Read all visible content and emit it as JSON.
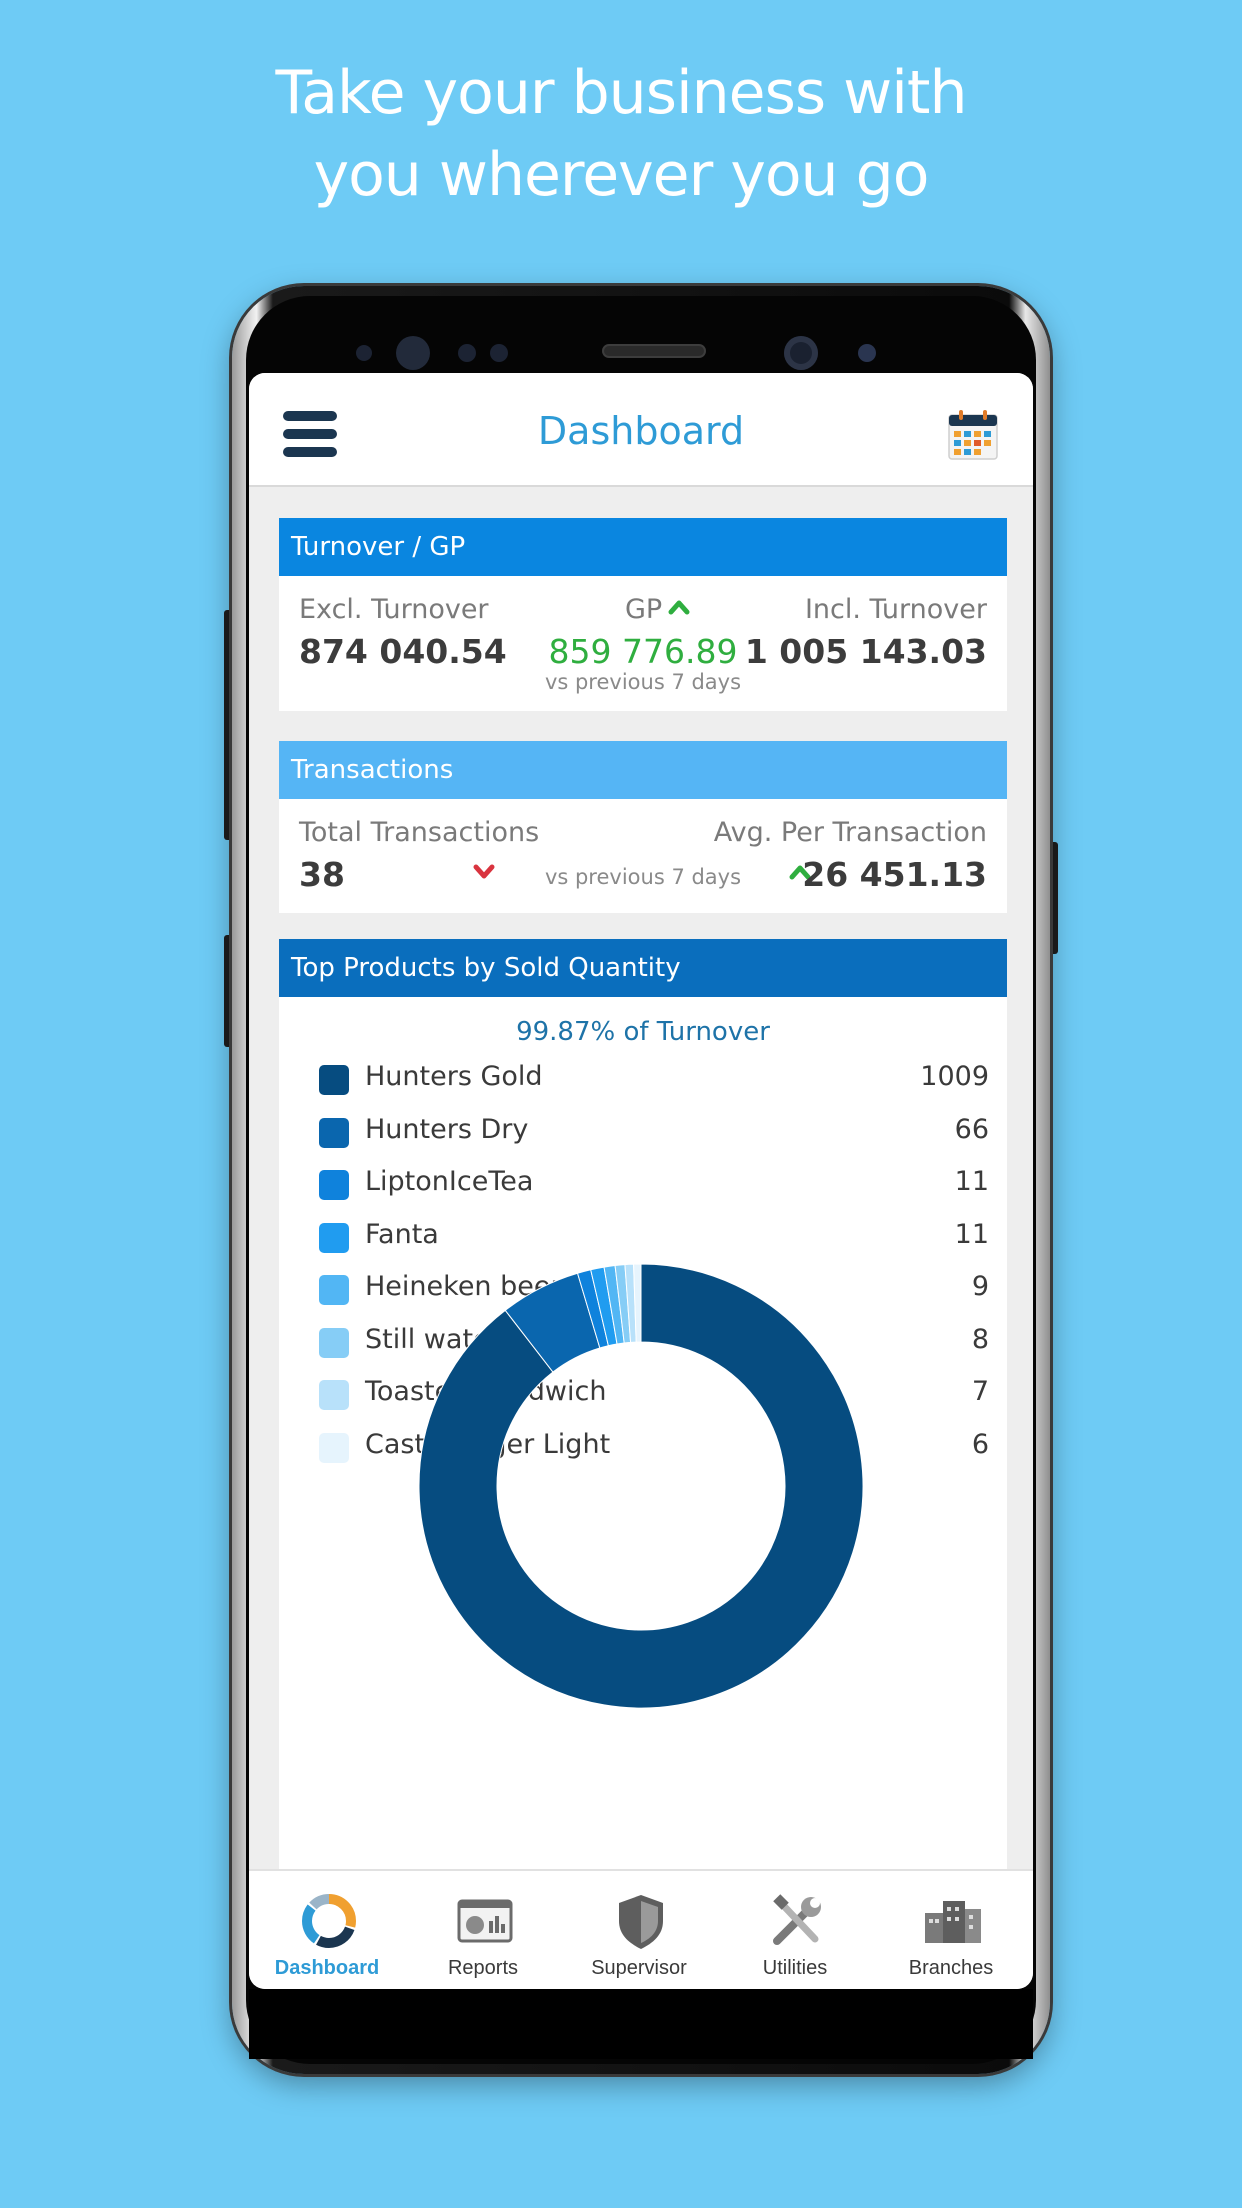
{
  "promo": {
    "line1": "Take your business with",
    "line2": "you wherever you go"
  },
  "appbar": {
    "title": "Dashboard",
    "menu_icon": "hamburger-menu-icon",
    "calendar_icon": "calendar-icon"
  },
  "turnover_card": {
    "header": "Turnover / GP",
    "header_color": "#0a86e0",
    "excl_label": "Excl. Turnover",
    "excl_value": "874 040.54",
    "gp_label": "GP",
    "gp_value": "859 776.89",
    "gp_compare": "vs previous 7 days",
    "gp_trend": "up",
    "incl_label": "Incl. Turnover",
    "incl_value": "1 005 143.03"
  },
  "transactions_card": {
    "header": "Transactions",
    "header_color": "#55b5f5",
    "total_label": "Total Transactions",
    "total_value": "38",
    "total_trend": "down",
    "compare": "vs previous 7 days",
    "avg_label": "Avg. Per Transaction",
    "avg_trend": "up",
    "avg_value": "26 451.13"
  },
  "top_products_card": {
    "header": "Top Products by Sold Quantity",
    "header_color": "#0a6ebd",
    "subtitle": "99.87% of Turnover"
  },
  "chart_data": {
    "type": "pie",
    "donut": true,
    "title": "Top Products by Sold Quantity",
    "categories": [
      "Hunters Gold",
      "Hunters Dry",
      "LiptonIceTea",
      "Fanta",
      "Heineken beer",
      "Still water",
      "Toasted Sandwich",
      "Castle Lager Light"
    ],
    "values": [
      1009,
      66,
      11,
      11,
      9,
      8,
      7,
      6
    ],
    "colors": [
      "#064c80",
      "#0a66ae",
      "#0f82dc",
      "#209cf0",
      "#52b6f4",
      "#86cdf6",
      "#b8e1fa",
      "#e6f4fd"
    ],
    "legend": "top"
  },
  "tabs": [
    {
      "label": "Dashboard",
      "icon": "dashboard-donut-icon",
      "active": true
    },
    {
      "label": "Reports",
      "icon": "reports-icon",
      "active": false
    },
    {
      "label": "Supervisor",
      "icon": "shield-icon",
      "active": false
    },
    {
      "label": "Utilities",
      "icon": "tools-icon",
      "active": false
    },
    {
      "label": "Branches",
      "icon": "buildings-icon",
      "active": false
    }
  ],
  "colors": {
    "background": "#6ecbf5",
    "accent": "#2e9bd6",
    "trend_up": "#2fae3f",
    "trend_down": "#d9343f",
    "gp_value": "#2fae3f"
  }
}
